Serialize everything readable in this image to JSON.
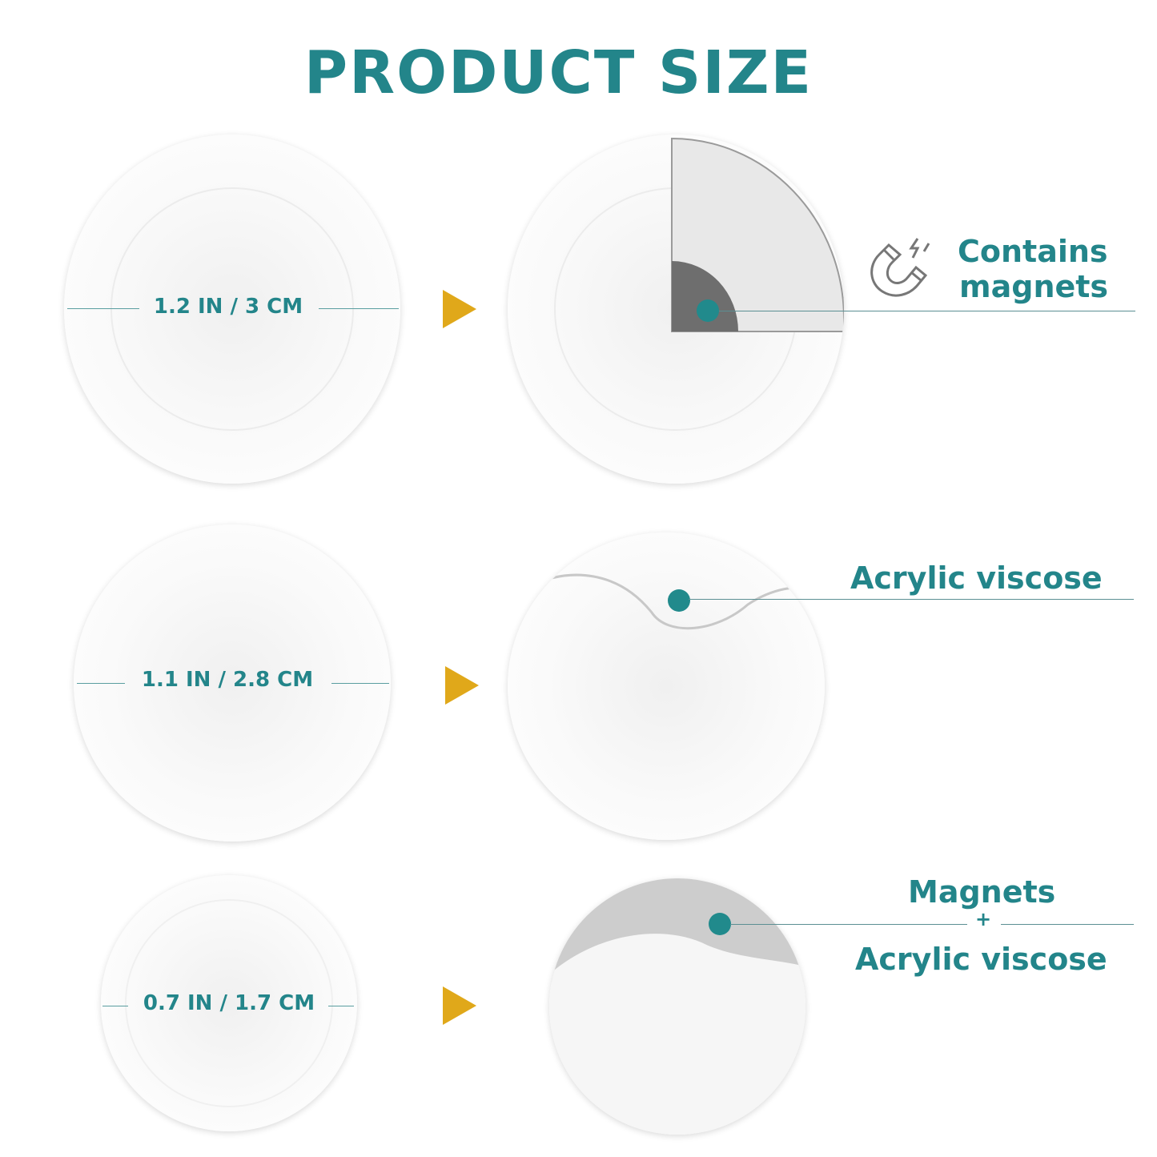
{
  "title": "PRODUCT SIZE",
  "rows": [
    {
      "size": "1.2 IN / 3 CM",
      "feature": [
        "Contains",
        "magnets"
      ],
      "icon": "magnet-icon"
    },
    {
      "size": "1.1 IN / 2.8 CM",
      "feature": [
        "Acrylic viscose"
      ]
    },
    {
      "size": "0.7 IN / 1.7 CM",
      "feature": [
        "Magnets",
        "+",
        "Acrylic viscose"
      ]
    }
  ],
  "colors": {
    "accent": "#23858a",
    "arrow": "#e0a81a",
    "magnet": "#6e6e6e"
  }
}
